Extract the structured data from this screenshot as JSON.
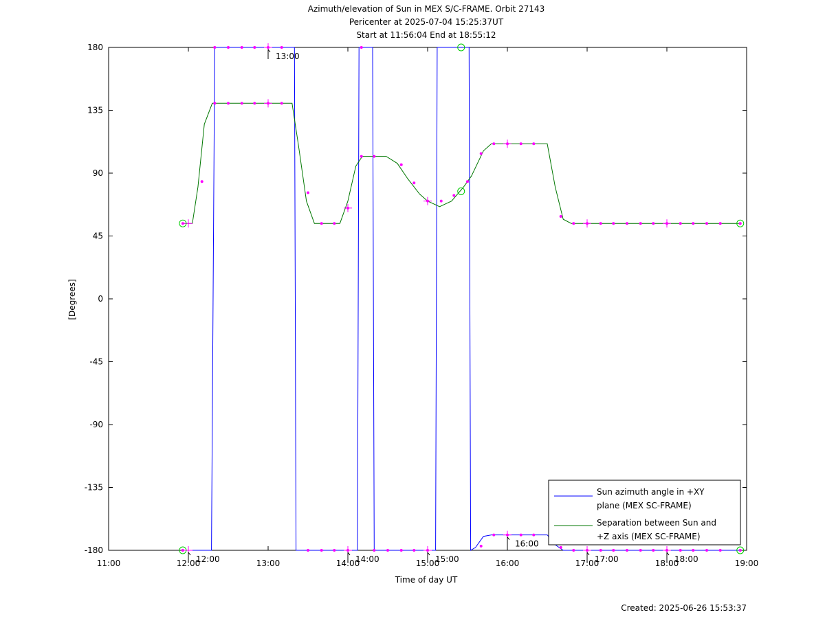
{
  "chart_data": {
    "type": "line",
    "title_lines": [
      "Azimuth/elevation of Sun in MEX S/C-FRAME.  Orbit 27143",
      "Pericenter at 2025-07-04 15:25:37UT",
      "Start at 11:56:04 End at 18:55:12"
    ],
    "xlabel": "Time of day UT",
    "ylabel": "[Degrees]",
    "xlim_hours": [
      11.0,
      19.0
    ],
    "ylim": [
      -180,
      180
    ],
    "x_ticks": [
      {
        "value": 11,
        "label": "11:00"
      },
      {
        "value": 12,
        "label": "12:00"
      },
      {
        "value": 13,
        "label": "13:00"
      },
      {
        "value": 14,
        "label": "14:00"
      },
      {
        "value": 15,
        "label": "15:00"
      },
      {
        "value": 16,
        "label": "16:00"
      },
      {
        "value": 17,
        "label": "17:00"
      },
      {
        "value": 18,
        "label": "18:00"
      },
      {
        "value": 19,
        "label": "19:00"
      }
    ],
    "y_ticks": [
      180,
      135,
      90,
      45,
      0,
      -45,
      -90,
      -135,
      -180
    ],
    "grid": false,
    "legend_position": "bottom-right",
    "series": [
      {
        "name": "Sun azimuth angle in +XY plane (MEX SC-FRAME)",
        "legend_lines": [
          "Sun azimuth angle in +XY",
          "plane (MEX SC-FRAME)"
        ],
        "color": "#0000ff",
        "points": [
          [
            11.93,
            -180
          ],
          [
            12.29,
            -180
          ],
          [
            12.33,
            180
          ],
          [
            13.33,
            180
          ],
          [
            13.35,
            -180
          ],
          [
            14.12,
            -180
          ],
          [
            14.14,
            180
          ],
          [
            14.31,
            180
          ],
          [
            14.33,
            -180
          ],
          [
            15.1,
            -180
          ],
          [
            15.12,
            180
          ],
          [
            15.52,
            180
          ],
          [
            15.54,
            -180
          ],
          [
            15.6,
            -178
          ],
          [
            15.7,
            -170
          ],
          [
            15.8,
            -169
          ],
          [
            16.0,
            -169
          ],
          [
            16.5,
            -169
          ],
          [
            16.6,
            -176
          ],
          [
            16.7,
            -180
          ],
          [
            18.92,
            -180
          ]
        ]
      },
      {
        "name": "Separation between Sun and +Z axis (MEX SC-FRAME)",
        "legend_lines": [
          "Separation between Sun and",
          "+Z axis (MEX SC-FRAME)"
        ],
        "color": "#007700",
        "points": [
          [
            11.93,
            54
          ],
          [
            12.05,
            54
          ],
          [
            12.12,
            80
          ],
          [
            12.2,
            125
          ],
          [
            12.3,
            140
          ],
          [
            13.3,
            140
          ],
          [
            13.38,
            110
          ],
          [
            13.48,
            70
          ],
          [
            13.58,
            54
          ],
          [
            13.9,
            54
          ],
          [
            14.0,
            70
          ],
          [
            14.1,
            95
          ],
          [
            14.18,
            102
          ],
          [
            14.48,
            102
          ],
          [
            14.62,
            97
          ],
          [
            14.75,
            86
          ],
          [
            14.9,
            75
          ],
          [
            15.0,
            70
          ],
          [
            15.15,
            66
          ],
          [
            15.3,
            70
          ],
          [
            15.45,
            80
          ],
          [
            15.55,
            88
          ],
          [
            15.7,
            106
          ],
          [
            15.8,
            111
          ],
          [
            16.5,
            111
          ],
          [
            16.6,
            80
          ],
          [
            16.7,
            57
          ],
          [
            16.8,
            54
          ],
          [
            18.92,
            54
          ]
        ]
      }
    ],
    "marker_points": {
      "color": "#ff00ff",
      "values": [
        [
          11.93,
          54
        ],
        [
          11.93,
          -180
        ],
        [
          12.17,
          84
        ],
        [
          12.33,
          180
        ],
        [
          12.33,
          140
        ],
        [
          12.5,
          180
        ],
        [
          12.5,
          140
        ],
        [
          12.67,
          180
        ],
        [
          12.67,
          140
        ],
        [
          12.83,
          180
        ],
        [
          12.83,
          140
        ],
        [
          13.0,
          180
        ],
        [
          13.0,
          140
        ],
        [
          13.17,
          180
        ],
        [
          13.17,
          140
        ],
        [
          13.5,
          76
        ],
        [
          13.5,
          -180
        ],
        [
          13.67,
          54
        ],
        [
          13.67,
          -180
        ],
        [
          13.83,
          54
        ],
        [
          13.83,
          -180
        ],
        [
          14.0,
          65
        ],
        [
          14.0,
          -180
        ],
        [
          14.17,
          180
        ],
        [
          14.17,
          102
        ],
        [
          14.33,
          102
        ],
        [
          14.33,
          -180
        ],
        [
          14.5,
          -180
        ],
        [
          14.67,
          96
        ],
        [
          14.67,
          -180
        ],
        [
          14.83,
          83
        ],
        [
          14.83,
          -180
        ],
        [
          15.0,
          70
        ],
        [
          15.0,
          -180
        ],
        [
          15.17,
          70
        ],
        [
          15.33,
          74
        ],
        [
          15.5,
          84
        ],
        [
          15.67,
          -177
        ],
        [
          15.67,
          104
        ],
        [
          15.83,
          -169
        ],
        [
          15.83,
          111
        ],
        [
          16.0,
          -169
        ],
        [
          16.0,
          111
        ],
        [
          16.17,
          -169
        ],
        [
          16.17,
          111
        ],
        [
          16.33,
          -169
        ],
        [
          16.33,
          111
        ],
        [
          16.67,
          59
        ],
        [
          16.67,
          -178
        ],
        [
          16.83,
          54
        ],
        [
          16.83,
          -180
        ],
        [
          17.0,
          54
        ],
        [
          17.0,
          -180
        ],
        [
          17.17,
          54
        ],
        [
          17.17,
          -180
        ],
        [
          17.33,
          54
        ],
        [
          17.33,
          -180
        ],
        [
          17.5,
          54
        ],
        [
          17.5,
          -180
        ],
        [
          17.67,
          54
        ],
        [
          17.67,
          -180
        ],
        [
          17.83,
          54
        ],
        [
          17.83,
          -180
        ],
        [
          18.0,
          54
        ],
        [
          18.0,
          -180
        ],
        [
          18.17,
          54
        ],
        [
          18.17,
          -180
        ],
        [
          18.33,
          54
        ],
        [
          18.33,
          -180
        ],
        [
          18.5,
          54
        ],
        [
          18.5,
          -180
        ],
        [
          18.67,
          54
        ],
        [
          18.67,
          -180
        ],
        [
          18.92,
          54
        ],
        [
          18.92,
          -180
        ]
      ],
      "hour_crosses": [
        [
          12.0,
          54
        ],
        [
          12.0,
          -180
        ],
        [
          13.0,
          180
        ],
        [
          13.0,
          140
        ],
        [
          14.0,
          65
        ],
        [
          14.0,
          -180
        ],
        [
          15.0,
          70
        ],
        [
          15.0,
          -180
        ],
        [
          16.0,
          111
        ],
        [
          16.0,
          -169
        ],
        [
          17.0,
          54
        ],
        [
          17.0,
          -180
        ],
        [
          18.0,
          54
        ],
        [
          18.0,
          -180
        ]
      ]
    },
    "circle_markers": {
      "color": "#00cc00",
      "values": [
        [
          11.93,
          54
        ],
        [
          11.93,
          -180
        ],
        [
          15.42,
          180
        ],
        [
          15.42,
          77
        ],
        [
          18.92,
          54
        ],
        [
          18.92,
          -180
        ]
      ]
    },
    "hour_annotations": [
      {
        "x": 12.0,
        "y": -180,
        "label": "12:00"
      },
      {
        "x": 13.0,
        "y": 180,
        "label": "13:00"
      },
      {
        "x": 14.0,
        "y": -180,
        "label": "14:00"
      },
      {
        "x": 15.0,
        "y": -180,
        "label": "15:00"
      },
      {
        "x": 16.0,
        "y": -169,
        "label": "16:00"
      },
      {
        "x": 17.0,
        "y": -180,
        "label": "17:00"
      },
      {
        "x": 18.0,
        "y": -180,
        "label": "18:00"
      }
    ]
  },
  "footer": {
    "created": "Created: 2025-06-26 15:53:37"
  }
}
